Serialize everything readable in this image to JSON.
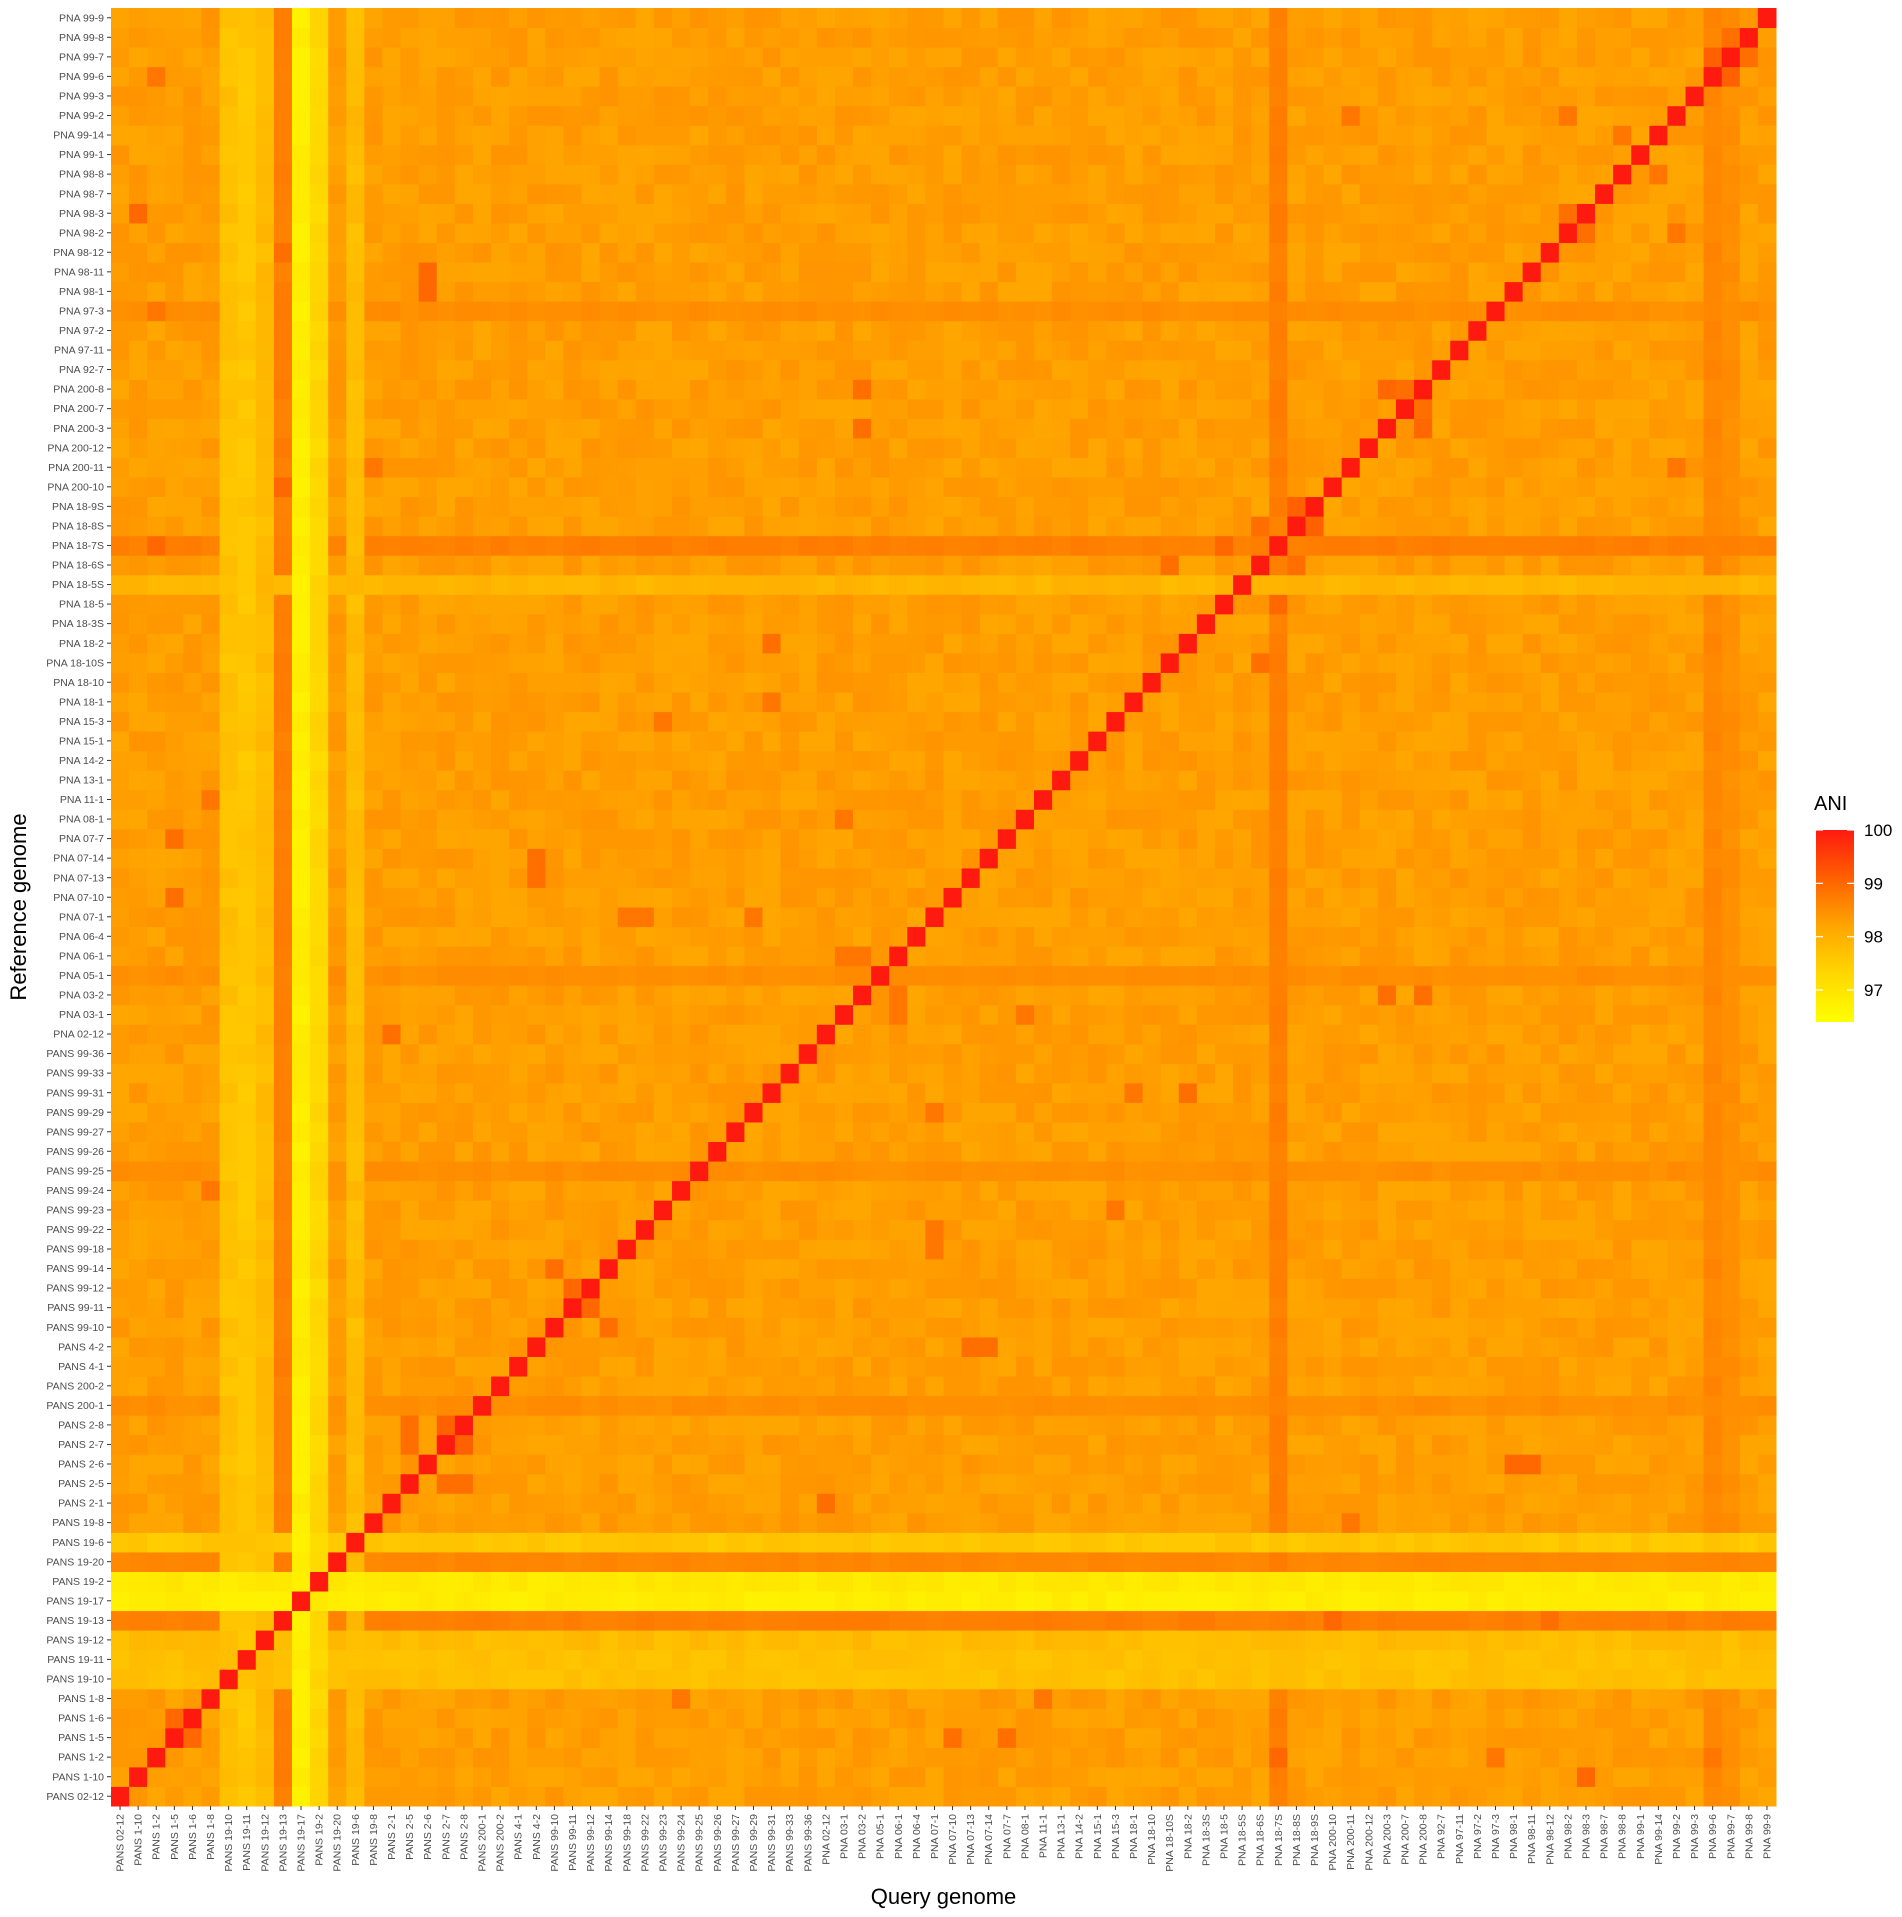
{
  "chart_data": {
    "type": "heatmap",
    "title": "",
    "xlabel": "Query genome",
    "ylabel": "Reference genome",
    "categories": [
      "PANS 02-12",
      "PANS 1-10",
      "PANS 1-2",
      "PANS 1-5",
      "PANS 1-6",
      "PANS 1-8",
      "PANS 19-10",
      "PANS 19-11",
      "PANS 19-12",
      "PANS 19-13",
      "PANS 19-17",
      "PANS 19-2",
      "PANS 19-20",
      "PANS 19-6",
      "PANS 19-8",
      "PANS 2-1",
      "PANS 2-5",
      "PANS 2-6",
      "PANS 2-7",
      "PANS 2-8",
      "PANS 200-1",
      "PANS 200-2",
      "PANS 4-1",
      "PANS 4-2",
      "PANS 99-10",
      "PANS 99-11",
      "PANS 99-12",
      "PANS 99-14",
      "PANS 99-18",
      "PANS 99-22",
      "PANS 99-23",
      "PANS 99-24",
      "PANS 99-25",
      "PANS 99-26",
      "PANS 99-27",
      "PANS 99-29",
      "PANS 99-31",
      "PANS 99-33",
      "PANS 99-36",
      "PNA 02-12",
      "PNA 03-1",
      "PNA 03-2",
      "PNA 05-1",
      "PNA 06-1",
      "PNA 06-4",
      "PNA 07-1",
      "PNA 07-10",
      "PNA 07-13",
      "PNA 07-14",
      "PNA 07-7",
      "PNA 08-1",
      "PNA 11-1",
      "PNA 13-1",
      "PNA 14-2",
      "PNA 15-1",
      "PNA 15-3",
      "PNA 18-1",
      "PNA 18-10",
      "PNA 18-10S",
      "PNA 18-2",
      "PNA 18-3S",
      "PNA 18-5",
      "PNA 18-5S",
      "PNA 18-6S",
      "PNA 18-7S",
      "PNA 18-8S",
      "PNA 18-9S",
      "PNA 200-10",
      "PNA 200-11",
      "PNA 200-12",
      "PNA 200-3",
      "PNA 200-7",
      "PNA 200-8",
      "PNA 92-7",
      "PNA 97-11",
      "PNA 97-2",
      "PNA 97-3",
      "PNA 98-1",
      "PNA 98-11",
      "PNA 98-12",
      "PNA 98-2",
      "PNA 98-3",
      "PNA 98-7",
      "PNA 98-8",
      "PNA 99-1",
      "PNA 99-14",
      "PNA 99-2",
      "PNA 99-3",
      "PNA 99-6",
      "PNA 99-7",
      "PNA 99-8",
      "PNA 99-9"
    ],
    "base_value": 98.3,
    "diagonal_value": 100,
    "low_rows": {
      "PANS 19-17": 96.8,
      "PANS 19-2": 96.9,
      "PANS 19-6": 97.6,
      "PANS 19-10": 97.7,
      "PANS 19-11": 97.7,
      "PANS 19-12": 97.8,
      "PNA 18-5S": 97.9
    },
    "low_cols": {
      "PANS 19-17": 96.8,
      "PANS 19-2": 97.3,
      "PANS 19-10": 97.7,
      "PANS 19-11": 97.6,
      "PANS 19-12": 97.8,
      "PANS 19-6": 97.8
    },
    "high_rows": {
      "PANS 19-13": 98.7,
      "PNA 18-7S": 98.7,
      "PANS 19-20": 98.6,
      "PNA 05-1": 98.5,
      "PANS 99-25": 98.5,
      "PANS 200-1": 98.5,
      "PNA 97-3": 98.5
    },
    "high_cols": {
      "PANS 19-13": 98.7,
      "PNA 18-7S": 98.7,
      "PNA 99-6": 98.6,
      "PNA 99-7": 98.5
    },
    "pair_values": [
      [
        "PANS 2-7",
        "PANS 2-8",
        99.1
      ],
      [
        "PANS 2-5",
        "PANS 2-7",
        98.9
      ],
      [
        "PANS 2-5",
        "PANS 2-8",
        98.9
      ],
      [
        "PANS 99-11",
        "PANS 99-12",
        99.0
      ],
      [
        "PANS 1-5",
        "PANS 1-6",
        99.0
      ],
      [
        "PNA 18-5",
        "PNA 18-7S",
        99.0
      ],
      [
        "PNA 18-8S",
        "PNA 18-9S",
        99.1
      ],
      [
        "PNA 18-6S",
        "PNA 18-8S",
        98.9
      ],
      [
        "PNA 99-6",
        "PNA 99-7",
        99.1
      ],
      [
        "PNA 99-7",
        "PNA 99-8",
        98.9
      ],
      [
        "PNA 200-3",
        "PNA 200-8",
        99.0
      ],
      [
        "PNA 200-7",
        "PNA 200-8",
        98.9
      ],
      [
        "PNA 200-10",
        "PANS 19-13",
        99.0
      ],
      [
        "PNA 98-12",
        "PANS 19-13",
        98.9
      ],
      [
        "PNA 02-12",
        "PANS 2-1",
        98.9
      ],
      [
        "PNA 07-13",
        "PANS 4-2",
        98.9
      ],
      [
        "PNA 07-14",
        "PANS 4-2",
        98.9
      ],
      [
        "PNA 98-1",
        "PANS 2-6",
        99.0
      ],
      [
        "PNA 98-3",
        "PANS 1-10",
        99.0
      ],
      [
        "PANS 99-14",
        "PANS 99-10",
        98.9
      ],
      [
        "PANS 99-18",
        "PNA 07-1",
        98.8
      ],
      [
        "PNA 07-10",
        "PANS 1-5",
        98.9
      ],
      [
        "PNA 07-7",
        "PANS 1-5",
        98.9
      ],
      [
        "PNA 99-6",
        "PANS 1-2",
        98.8
      ],
      [
        "PNA 97-3",
        "PANS 1-2",
        98.8
      ],
      [
        "PNA 18-7S",
        "PANS 1-2",
        99.0
      ],
      [
        "PNA 11-1",
        "PANS 1-8",
        98.8
      ],
      [
        "PANS 99-24",
        "PANS 1-8",
        98.8
      ],
      [
        "PNA 18-2",
        "PANS 99-31",
        98.9
      ],
      [
        "PNA 18-1",
        "PANS 99-31",
        98.8
      ],
      [
        "PNA 18-10S",
        "PNA 18-6S",
        98.9
      ],
      [
        "PNA 98-2",
        "PNA 98-3",
        98.9
      ],
      [
        "PNA 99-2",
        "PNA 98-2",
        98.8
      ],
      [
        "PNA 200-11",
        "PNA 99-2",
        98.8
      ],
      [
        "PNA 98-8",
        "PNA 99-14",
        98.8
      ],
      [
        "PNA 03-2",
        "PNA 200-3",
        98.9
      ],
      [
        "PNA 03-2",
        "PNA 200-8",
        98.9
      ],
      [
        "PNA 200-8",
        "PNA 03-2",
        98.9
      ],
      [
        "PNA 200-3",
        "PNA 03-2",
        98.9
      ],
      [
        "PANS 99-29",
        "PNA 07-1",
        98.8
      ],
      [
        "PANS 99-23",
        "PNA 15-3",
        98.8
      ],
      [
        "PANS 2-6",
        "PNA 98-11",
        99.0
      ],
      [
        "PANS 19-8",
        "PNA 200-11",
        98.8
      ],
      [
        "PNA 08-1",
        "PNA 03-1",
        98.8
      ],
      [
        "PNA 03-1",
        "PNA 06-1",
        98.8
      ],
      [
        "PNA 06-1",
        "PNA 03-2",
        98.8
      ],
      [
        "PNA 07-1",
        "PANS 99-22",
        98.8
      ]
    ],
    "colorbar": {
      "title": "ANI",
      "ticks": [
        97,
        98,
        99,
        100
      ],
      "min": 96.4,
      "max": 100,
      "colors": [
        "#FFFF00",
        "#FFD700",
        "#FFA500",
        "#FF6000",
        "#FF1A10"
      ]
    },
    "grid": false,
    "legend_position": "right"
  }
}
